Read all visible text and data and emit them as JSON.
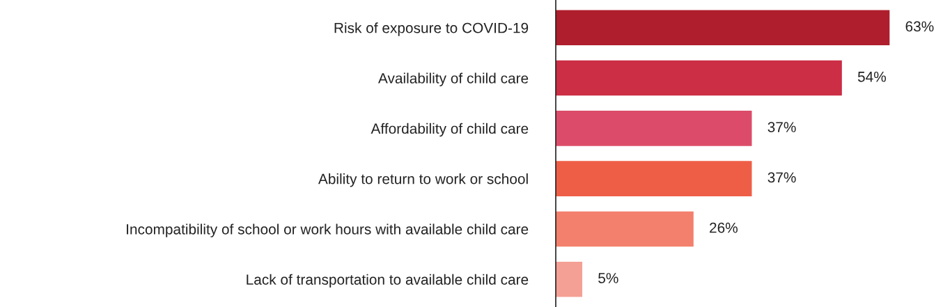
{
  "chart_data": {
    "type": "bar",
    "orientation": "horizontal",
    "categories": [
      "Risk of exposure to COVID-19",
      "Availability of child care",
      "Affordability of child care",
      "Ability to return to work or school",
      "Incompatibility of school or work hours with available child care",
      "Lack of transportation to available child care"
    ],
    "values": [
      63,
      54,
      37,
      37,
      26,
      5
    ],
    "colors": [
      "#ae1e2c",
      "#cb2e45",
      "#dc4c6a",
      "#ee5e47",
      "#f3806c",
      "#f4a095"
    ],
    "value_labels": [
      "63%",
      "54%",
      "37%",
      "37%",
      "26%",
      "5%"
    ],
    "tick_labels": "y",
    "grid": false,
    "legend": false
  }
}
